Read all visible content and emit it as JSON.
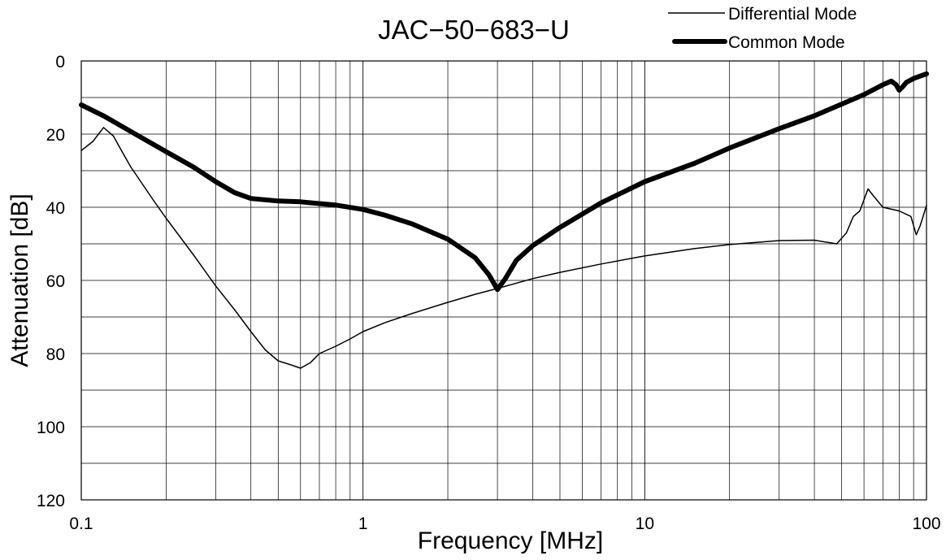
{
  "chart_data": {
    "type": "line",
    "title": "JAC−50−683−U",
    "xlabel": "Frequency [MHz]",
    "ylabel": "Attenuation [dB]",
    "x_scale": "log",
    "xlim": [
      0.1,
      100
    ],
    "ylim": [
      0,
      120
    ],
    "y_inverted": true,
    "grid": true,
    "legend_position": "top-right",
    "x_ticks": [
      0.1,
      1,
      10,
      100
    ],
    "x_tick_labels": [
      "0.1",
      "1",
      "10",
      "100"
    ],
    "y_ticks": [
      0,
      20,
      40,
      60,
      80,
      100,
      120
    ],
    "y_tick_labels": [
      "0",
      "20",
      "40",
      "60",
      "80",
      "100",
      "120"
    ],
    "series": [
      {
        "name": "Differential Mode",
        "line_width": 1.5,
        "x": [
          0.1,
          0.11,
          0.12,
          0.13,
          0.14,
          0.15,
          0.18,
          0.2,
          0.25,
          0.3,
          0.35,
          0.4,
          0.45,
          0.5,
          0.55,
          0.6,
          0.65,
          0.7,
          0.8,
          0.9,
          1.0,
          1.2,
          1.5,
          2.0,
          2.5,
          3.0,
          4.0,
          5.0,
          7.0,
          10,
          15,
          20,
          30,
          40,
          48,
          52,
          55,
          58,
          62,
          65,
          70,
          80,
          88,
          92,
          95,
          100
        ],
        "y": [
          24.5,
          22,
          18.2,
          20.5,
          25,
          29,
          38,
          43,
          53,
          61.5,
          68,
          74,
          79,
          82,
          83,
          84,
          82.5,
          80,
          78,
          76,
          74,
          71.5,
          69,
          66,
          63.8,
          62.2,
          59.5,
          57.8,
          55.5,
          53.3,
          51.3,
          50.2,
          49.1,
          49,
          50,
          47,
          42.5,
          41,
          35,
          37,
          40,
          41,
          42.5,
          47.5,
          45,
          39.5
        ]
      },
      {
        "name": "Common Mode",
        "line_width": 6,
        "x": [
          0.1,
          0.12,
          0.15,
          0.2,
          0.25,
          0.3,
          0.35,
          0.4,
          0.5,
          0.6,
          0.7,
          0.8,
          1.0,
          1.2,
          1.5,
          2.0,
          2.5,
          2.8,
          3.0,
          3.2,
          3.5,
          4.0,
          5.0,
          7.0,
          10,
          15,
          20,
          30,
          40,
          50,
          60,
          70,
          75,
          78,
          80,
          82,
          85,
          90,
          100
        ],
        "y": [
          12,
          15,
          19.3,
          24.8,
          29,
          33,
          36,
          37.6,
          38.3,
          38.5,
          39,
          39.4,
          40.6,
          42.2,
          44.6,
          48.7,
          53.8,
          58.5,
          62.5,
          59.5,
          54.5,
          50.5,
          45.5,
          38.8,
          33,
          28,
          23.8,
          18.5,
          15,
          11.8,
          9.2,
          6.5,
          5.5,
          6.5,
          8,
          7.2,
          5.8,
          4.8,
          3.5
        ]
      }
    ]
  }
}
